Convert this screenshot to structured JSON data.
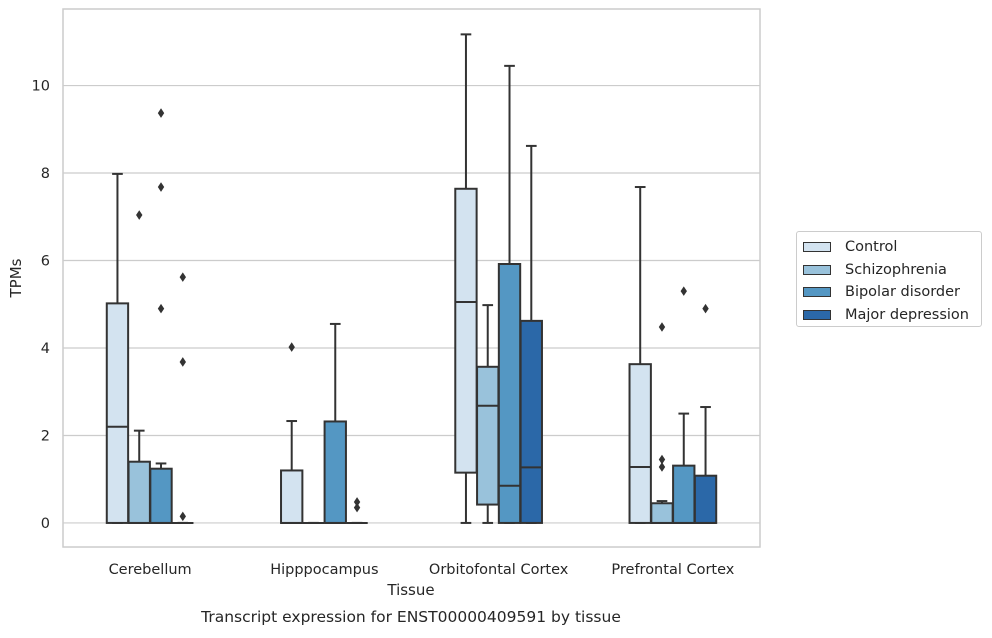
{
  "chart_data": {
    "type": "box",
    "title": "Transcript expression for ENST00000409591 by tissue",
    "xlabel": "Tissue",
    "ylabel": "TPMs",
    "ylim": [
      -0.55,
      11.75
    ],
    "yticks": [
      0,
      2,
      4,
      6,
      8,
      10
    ],
    "grid": "horizontal",
    "legend_position": "right",
    "categories": [
      "Cerebellum",
      "Hipppocampus",
      "Orbitofontal Cortex",
      "Prefrontal Cortex"
    ],
    "series": [
      {
        "name": "Control",
        "color": "#d3e3f0",
        "boxes": [
          {
            "q1": 0,
            "median": 2.2,
            "q3": 5.02,
            "whisker_low": 0,
            "whisker_high": 7.98,
            "outliers": []
          },
          {
            "q1": 0,
            "median": 0,
            "q3": 1.2,
            "whisker_low": 0,
            "whisker_high": 2.33,
            "outliers": [
              4.02
            ]
          },
          {
            "q1": 1.15,
            "median": 5.05,
            "q3": 7.64,
            "whisker_low": 0,
            "whisker_high": 11.17,
            "outliers": []
          },
          {
            "q1": 0,
            "median": 1.28,
            "q3": 3.63,
            "whisker_low": 0,
            "whisker_high": 7.68,
            "outliers": []
          }
        ]
      },
      {
        "name": "Schizophrenia",
        "color": "#99c2db",
        "boxes": [
          {
            "q1": 0,
            "median": 0,
            "q3": 1.4,
            "whisker_low": 0,
            "whisker_high": 2.11,
            "outliers": [
              7.04
            ]
          },
          {
            "q1": 0,
            "median": 0,
            "q3": 0,
            "whisker_low": 0,
            "whisker_high": 0,
            "outliers": []
          },
          {
            "q1": 0.42,
            "median": 2.68,
            "q3": 3.57,
            "whisker_low": 0,
            "whisker_high": 4.98,
            "outliers": []
          },
          {
            "q1": 0,
            "median": 0,
            "q3": 0.45,
            "whisker_low": 0,
            "whisker_high": 0.5,
            "outliers": [
              1.28,
              1.45,
              4.48
            ]
          }
        ]
      },
      {
        "name": "Bipolar disorder",
        "color": "#5497c3",
        "boxes": [
          {
            "q1": 0,
            "median": 0,
            "q3": 1.24,
            "whisker_low": 0,
            "whisker_high": 1.36,
            "outliers": [
              4.9,
              7.68,
              9.37
            ]
          },
          {
            "q1": 0,
            "median": 0,
            "q3": 2.32,
            "whisker_low": 0,
            "whisker_high": 4.55,
            "outliers": []
          },
          {
            "q1": 0,
            "median": 0.85,
            "q3": 5.92,
            "whisker_low": 0,
            "whisker_high": 10.45,
            "outliers": []
          },
          {
            "q1": 0,
            "median": 0,
            "q3": 1.31,
            "whisker_low": 0,
            "whisker_high": 2.5,
            "outliers": [
              5.3
            ]
          }
        ]
      },
      {
        "name": "Major depression",
        "color": "#2b68a8",
        "boxes": [
          {
            "q1": 0,
            "median": 0,
            "q3": 0,
            "whisker_low": 0,
            "whisker_high": 0,
            "outliers": [
              0.15,
              3.68,
              5.62
            ]
          },
          {
            "q1": 0,
            "median": 0,
            "q3": 0,
            "whisker_low": 0,
            "whisker_high": 0,
            "outliers": [
              0.35,
              0.48
            ]
          },
          {
            "q1": 0,
            "median": 1.27,
            "q3": 4.62,
            "whisker_low": 0,
            "whisker_high": 8.62,
            "outliers": []
          },
          {
            "q1": 0,
            "median": 0,
            "q3": 1.08,
            "whisker_low": 0,
            "whisker_high": 2.65,
            "outliers": [
              4.9
            ]
          }
        ]
      }
    ]
  }
}
